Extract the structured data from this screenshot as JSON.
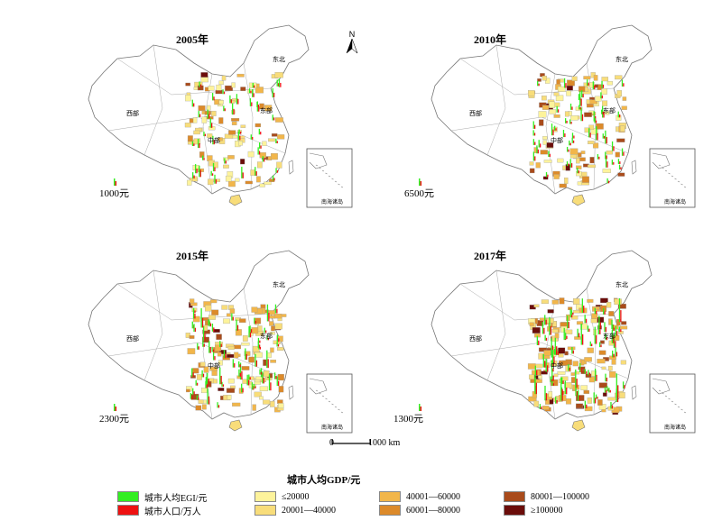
{
  "panels": [
    {
      "year": "2005年",
      "scale_value": "1000元",
      "density": 0.35
    },
    {
      "year": "2010年",
      "scale_value": "6500元",
      "density": 0.45
    },
    {
      "year": "2015年",
      "scale_value": "2300元",
      "density": 0.6
    },
    {
      "year": "2017年",
      "scale_value": "1300元",
      "density": 0.85
    }
  ],
  "map_labels": {
    "west": "西部",
    "central": "中部",
    "east": "东部",
    "northeast": "东北",
    "inset": "南海诸岛"
  },
  "north_label": "N",
  "scale_bar": {
    "zero": "0",
    "distance": "1000 km"
  },
  "legend": {
    "title": "城市人均GDP/元",
    "bar_items": [
      {
        "label": "城市人均EGI/元",
        "color": "#33ee22"
      },
      {
        "label": "城市人口/万人",
        "color": "#ee1111"
      }
    ],
    "gdp_classes": [
      {
        "label": "≤20000",
        "color": "#fdf39b"
      },
      {
        "label": "20001—40000",
        "color": "#f8dd7a"
      },
      {
        "label": "40001—60000",
        "color": "#f2b64a"
      },
      {
        "label": "60001—80000",
        "color": "#dc8a2a"
      },
      {
        "label": "80001—100000",
        "color": "#a94b1b"
      },
      {
        "label": "≥100000",
        "color": "#6b0d0a"
      }
    ]
  }
}
